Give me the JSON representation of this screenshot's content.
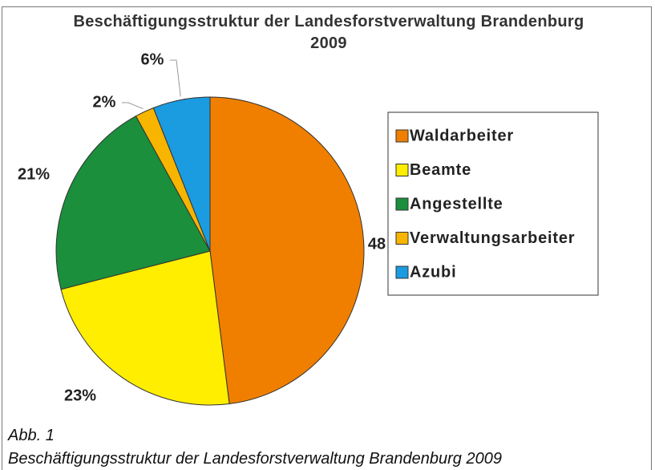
{
  "chart_data": {
    "type": "pie",
    "title": "Beschäftigungsstruktur der Landesforstverwaltung Brandenburg 2009",
    "categories": [
      "Waldarbeiter",
      "Beamte",
      "Angestellte",
      "Verwaltungsarbeiter",
      "Azubi"
    ],
    "values": [
      48,
      23,
      21,
      2,
      6
    ],
    "value_labels": [
      "48",
      "23%",
      "21%",
      "2%",
      "6%"
    ],
    "colors": [
      "#f07f00",
      "#ffee00",
      "#1b8f3c",
      "#f7b500",
      "#1b9be0"
    ],
    "legend": "right"
  },
  "caption": {
    "label": "Abb. 1",
    "text": "Beschäftigungsstruktur der Landesforstverwaltung Brandenburg 2009"
  }
}
